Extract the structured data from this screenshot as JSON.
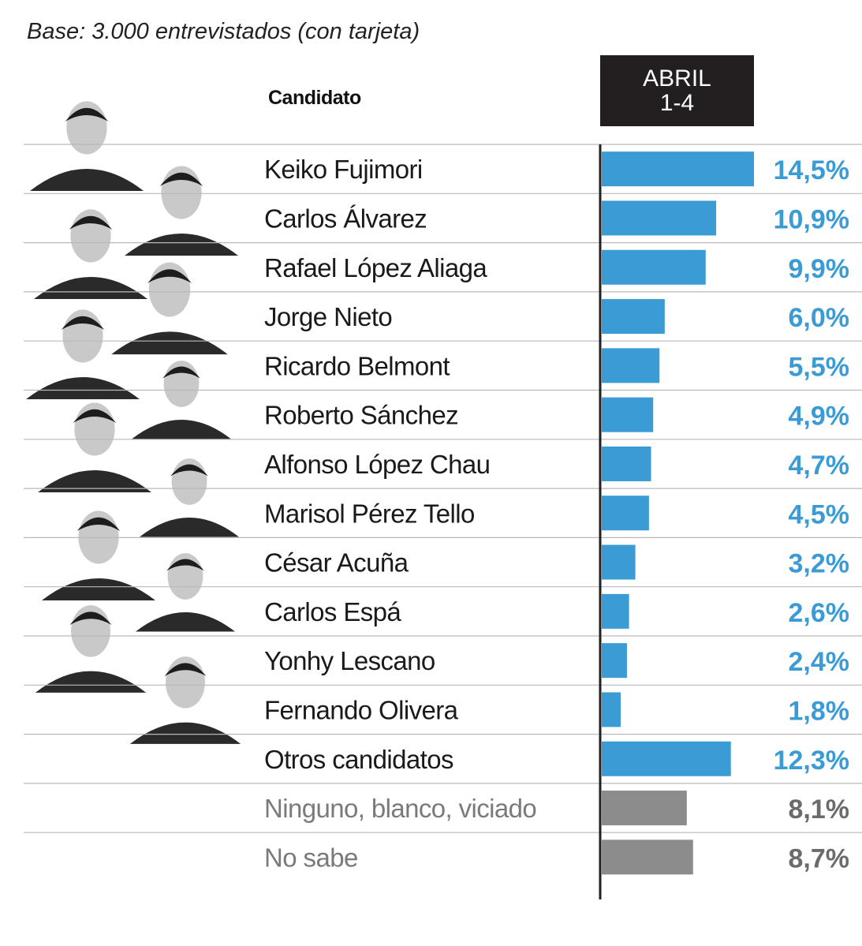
{
  "subtitle": "Base: 3.000 entrevistados (con tarjeta)",
  "column_header": "Candidato",
  "period": {
    "line1": "ABRIL",
    "line2": "1-4"
  },
  "colors": {
    "candidate_bar": "#3a9bd5",
    "candidate_value": "#3a9bd5",
    "other_bar": "#8c8c8c",
    "other_value": "#6b6b6b",
    "candidate_text": "#1a1a1a",
    "other_text": "#7a7a7a"
  },
  "chart_data": {
    "type": "bar",
    "orientation": "horizontal",
    "categories": [
      "Keiko Fujimori",
      "Carlos Álvarez",
      "Rafael López Aliaga",
      "Jorge Nieto",
      "Ricardo Belmont",
      "Roberto Sánchez",
      "Alfonso López Chau",
      "Marisol Pérez Tello",
      "César Acuña",
      "Carlos Espá",
      "Yonhy Lescano",
      "Fernando Olivera",
      "Otros candidatos",
      "Ninguno, blanco, viciado",
      "No sabe"
    ],
    "values": [
      14.5,
      10.9,
      9.9,
      6.0,
      5.5,
      4.9,
      4.7,
      4.5,
      3.2,
      2.6,
      2.4,
      1.8,
      12.3,
      8.1,
      8.7
    ],
    "value_labels": [
      "14,5%",
      "10,9%",
      "9,9%",
      "6,0%",
      "5,5%",
      "4,9%",
      "4,7%",
      "4,5%",
      "3,2%",
      "2,6%",
      "2,4%",
      "1,8%",
      "12,3%",
      "8,1%",
      "8,7%"
    ],
    "groups": [
      "candidate",
      "candidate",
      "candidate",
      "candidate",
      "candidate",
      "candidate",
      "candidate",
      "candidate",
      "candidate",
      "candidate",
      "candidate",
      "candidate",
      "candidate",
      "other",
      "other"
    ],
    "xlim": [
      0,
      14.5
    ],
    "legend": "none",
    "grid": false
  }
}
